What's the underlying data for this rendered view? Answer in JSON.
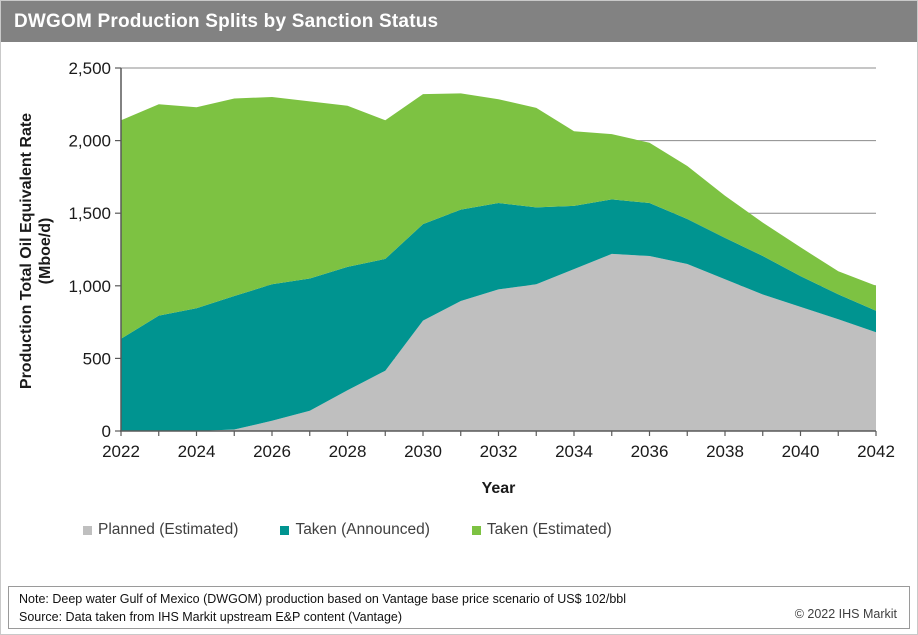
{
  "title_bar": {
    "title": "DWGOM Production Splits by Sanction Status"
  },
  "chart_data": {
    "type": "area",
    "stacked": true,
    "title": "DWGOM Production Splits by Sanction Status",
    "x": [
      2022,
      2023,
      2024,
      2025,
      2026,
      2027,
      2028,
      2029,
      2030,
      2031,
      2032,
      2033,
      2034,
      2035,
      2036,
      2037,
      2038,
      2039,
      2040,
      2041,
      2042
    ],
    "series": [
      {
        "name": "Planned (Estimated)",
        "color": "#BFBFBF",
        "values": [
          0,
          0,
          0,
          10,
          70,
          140,
          280,
          415,
          760,
          895,
          975,
          1010,
          1115,
          1220,
          1205,
          1150,
          1045,
          940,
          855,
          770,
          680
        ]
      },
      {
        "name": "Taken (Announced)",
        "color": "#009490",
        "values": [
          635,
          795,
          845,
          920,
          940,
          910,
          850,
          770,
          665,
          630,
          595,
          530,
          435,
          375,
          365,
          310,
          285,
          265,
          212,
          171,
          148
        ]
      },
      {
        "name": "Taken (Estimated)",
        "color": "#7DC242",
        "values": [
          1505,
          1455,
          1385,
          1360,
          1290,
          1220,
          1110,
          955,
          895,
          800,
          715,
          685,
          515,
          450,
          415,
          365,
          290,
          230,
          198,
          159,
          172
        ]
      }
    ],
    "totals": [
      2140,
      2250,
      2230,
      2290,
      2300,
      2270,
      2240,
      2140,
      2320,
      2325,
      2285,
      2225,
      2065,
      2045,
      1985,
      1825,
      1620,
      1435,
      1265,
      1100,
      1000
    ],
    "xlabel": "Year",
    "ylabel_lines": [
      "Production Total Oil Equivalent Rate",
      "(Mboe/d)"
    ],
    "ylim": [
      0,
      2500
    ],
    "y_tick_values": [
      0,
      500,
      1000,
      1500,
      2000,
      2500
    ],
    "y_tick_labels": [
      "0",
      "500",
      "1,000",
      "1,500",
      "2,000",
      "2,500"
    ],
    "x_tick_labels": [
      "2022",
      "2024",
      "2026",
      "2028",
      "2030",
      "2032",
      "2034",
      "2036",
      "2038",
      "2040",
      "2042"
    ],
    "grid": "horizontal-gridlines-on",
    "legend_position": "bottom"
  },
  "footer": {
    "note": "Note: Deep water Gulf of Mexico (DWGOM) production based on Vantage base price scenario of US$ 102/bbl",
    "source": "Source: Data taken from IHS Markit upstream E&P content (Vantage)",
    "copyright": "© 2022 IHS Markit"
  }
}
